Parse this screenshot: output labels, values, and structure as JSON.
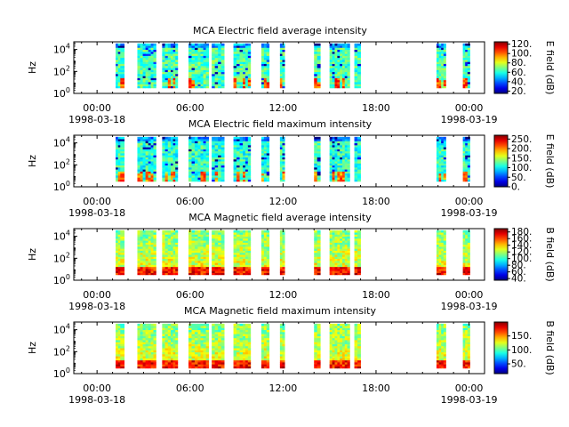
{
  "chart_data": [
    {
      "type": "heatmap",
      "title": "MCA  Electric field average intensity",
      "ylabel": "Hz",
      "colorbar_label": "E field (dB)",
      "colorbar_range": [
        15,
        125
      ],
      "colorbar_ticks": [
        "120.",
        "100.",
        "80.",
        "60.",
        "40.",
        "20."
      ],
      "colorbar_tick_values": [
        120,
        100,
        80,
        60,
        40,
        20
      ],
      "baseline": 0.45,
      "x_ticks": [
        "00:00",
        "06:00",
        "12:00",
        "18:00",
        "00:00"
      ],
      "x_dates": [
        "1998-03-18",
        "1998-03-19"
      ],
      "y_ticks": [
        "10^0",
        "10^2",
        "10^4"
      ]
    },
    {
      "type": "heatmap",
      "title": "MCA  Electric field maximum intensity",
      "ylabel": "Hz",
      "colorbar_label": "E field (dB)",
      "colorbar_range": [
        0,
        270
      ],
      "colorbar_ticks": [
        "250.",
        "200.",
        "150.",
        "100.",
        "50.",
        "0."
      ],
      "colorbar_tick_values": [
        250,
        200,
        150,
        100,
        50,
        0
      ],
      "baseline": 0.42,
      "x_ticks": [
        "00:00",
        "06:00",
        "12:00",
        "18:00",
        "00:00"
      ],
      "x_dates": [
        "1998-03-18",
        "1998-03-19"
      ],
      "y_ticks": [
        "10^0",
        "10^2",
        "10^4"
      ]
    },
    {
      "type": "heatmap",
      "title": "MCA  Magnetic field average intensity",
      "ylabel": "Hz",
      "colorbar_label": "B field (dB)",
      "colorbar_range": [
        35,
        190
      ],
      "colorbar_ticks": [
        "180.",
        "160.",
        "140.",
        "120.",
        "100.",
        "80.",
        "60.",
        "40."
      ],
      "colorbar_tick_values": [
        180,
        160,
        140,
        120,
        100,
        80,
        60,
        40
      ],
      "baseline": 0.5,
      "x_ticks": [
        "00:00",
        "06:00",
        "12:00",
        "18:00",
        "00:00"
      ],
      "x_dates": [
        "1998-03-18",
        "1998-03-19"
      ],
      "y_ticks": [
        "10^0",
        "10^2",
        "10^4"
      ]
    },
    {
      "type": "heatmap",
      "title": "MCA  Magnetic field maximum intensity",
      "ylabel": "Hz",
      "colorbar_label": "B field (dB)",
      "colorbar_range": [
        15,
        200
      ],
      "colorbar_ticks": [
        "150.",
        "100.",
        "50."
      ],
      "colorbar_tick_values": [
        150,
        100,
        50
      ],
      "baseline": 0.5,
      "x_ticks": [
        "00:00",
        "06:00",
        "12:00",
        "18:00",
        "00:00"
      ],
      "x_dates": [
        "1998-03-18",
        "1998-03-19"
      ],
      "y_ticks": [
        "10^0",
        "10^2",
        "10^4"
      ]
    }
  ],
  "time_axis": {
    "start_hour": -1.5,
    "end_hour": 25.0,
    "major_tick_hours": [
      0,
      6,
      12,
      18,
      24
    ],
    "minor_tick_step_hours": 1
  },
  "freq_axis": {
    "log10_min": 0,
    "log10_max": 4.7,
    "data_log10_min": 0.5,
    "data_log10_max": 4.55
  },
  "data_intervals_hours": [
    [
      1.2,
      1.5
    ],
    [
      1.5,
      1.75
    ],
    [
      2.6,
      3.3
    ],
    [
      3.3,
      3.8
    ],
    [
      4.2,
      4.75
    ],
    [
      4.75,
      5.2
    ],
    [
      5.9,
      6.5
    ],
    [
      6.5,
      7.2
    ],
    [
      7.4,
      7.8
    ],
    [
      7.8,
      8.2
    ],
    [
      8.8,
      9.4
    ],
    [
      9.4,
      9.9
    ],
    [
      10.6,
      11.1
    ],
    [
      11.8,
      12.1
    ],
    [
      14.0,
      14.4
    ],
    [
      15.0,
      15.5
    ],
    [
      15.5,
      16.3
    ],
    [
      16.6,
      17.0
    ],
    [
      21.9,
      22.2
    ],
    [
      22.2,
      22.5
    ],
    [
      23.6,
      24.05
    ]
  ]
}
